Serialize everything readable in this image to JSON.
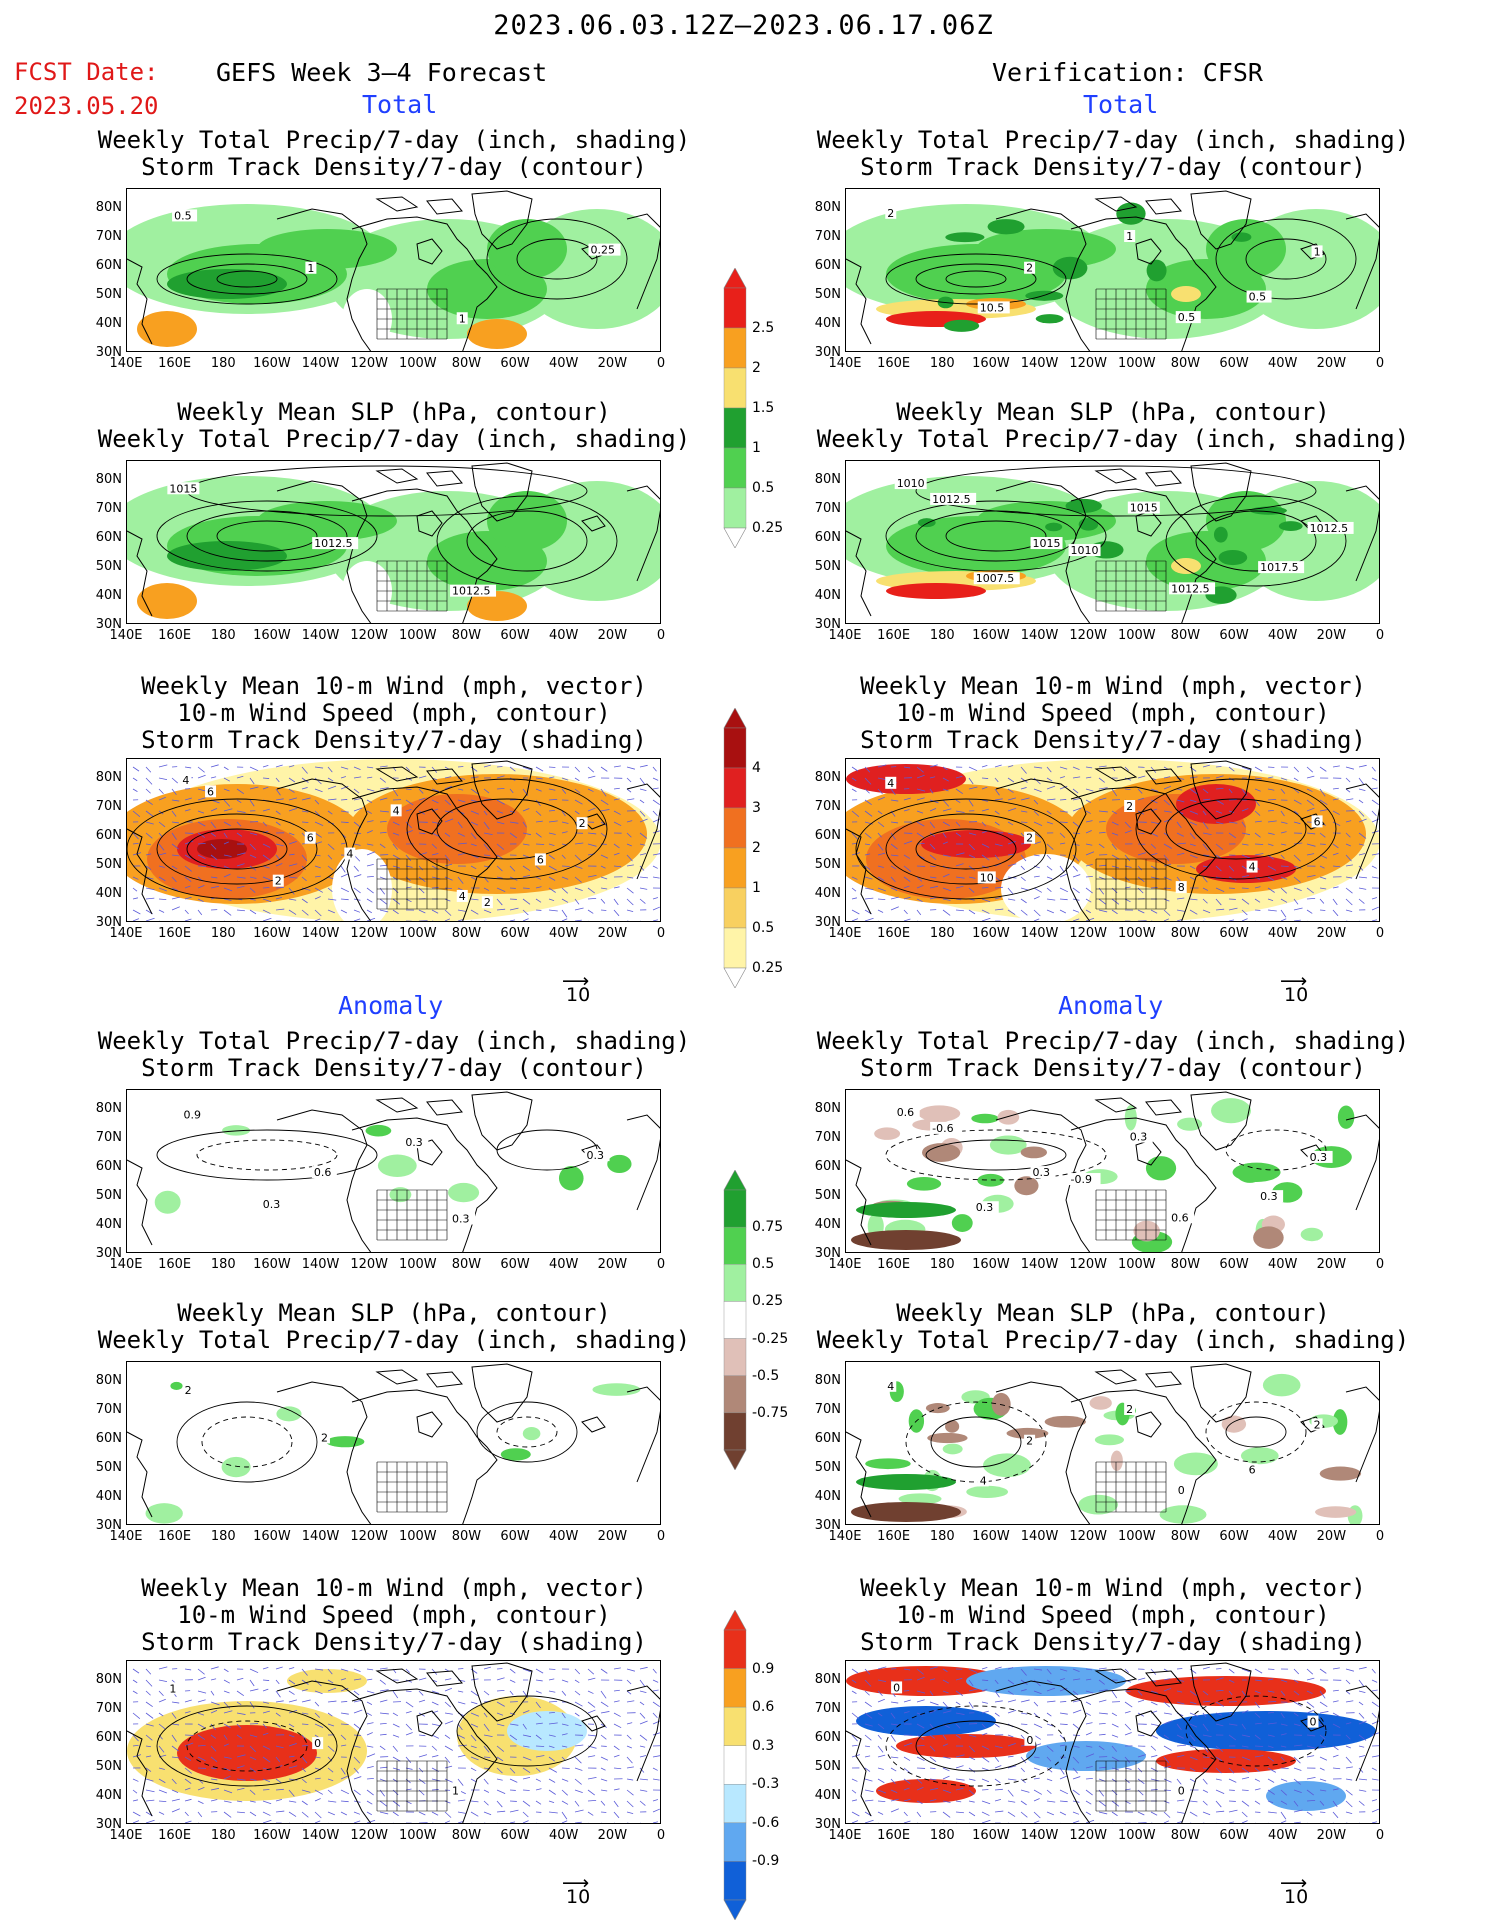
{
  "header": {
    "date_range": "2023.06.03.12Z–2023.06.17.06Z",
    "fcst_label": "FCST Date:",
    "fcst_date": "2023.05.20",
    "left_title": "GEFS Week 3–4 Forecast",
    "right_title": "Verification: CFSR"
  },
  "sections": {
    "total": "Total",
    "anomaly": "Anomaly"
  },
  "panel_titles": {
    "precip_storm": [
      "Weekly Total Precip/7-day (inch, shading)",
      "Storm Track Density/7-day (contour)"
    ],
    "slp_precip": [
      "Weekly Mean SLP (hPa, contour)",
      "Weekly Total Precip/7-day (inch, shading)"
    ],
    "wind_storm": [
      "Weekly Mean 10-m Wind (mph, vector)",
      "10-m Wind Speed (mph, contour)",
      "Storm Track Density/7-day (shading)"
    ]
  },
  "axes": {
    "lat_ticks": [
      "80N",
      "70N",
      "60N",
      "50N",
      "40N",
      "30N"
    ],
    "lon_ticks": [
      "140E",
      "160E",
      "180",
      "160W",
      "140W",
      "120W",
      "100W",
      "80W",
      "60W",
      "40W",
      "20W",
      "0"
    ]
  },
  "vector_reference": "10",
  "colorbars": {
    "precip_total": {
      "labels": [
        "2.5",
        "2",
        "1.5",
        "1",
        "0.5",
        "0.25"
      ],
      "colors": [
        "#e8201a",
        "#f8a020",
        "#f8e070",
        "#20a030",
        "#50d050",
        "#a0f0a0"
      ]
    },
    "storm_total": {
      "labels": [
        "4",
        "3",
        "2",
        "1",
        "0.5",
        "0.25"
      ],
      "colors": [
        "#a81010",
        "#e02020",
        "#f07020",
        "#f8a020",
        "#f8d060",
        "#fff4a8"
      ]
    },
    "precip_anom": {
      "labels": [
        "0.75",
        "0.5",
        "0.25",
        "-0.25",
        "-0.5",
        "-0.75"
      ],
      "colors": [
        "#20a030",
        "#50d050",
        "#a0f0a0",
        "#ffffff",
        "#e0c0b8",
        "#b08878",
        "#704030"
      ]
    },
    "storm_anom": {
      "labels": [
        "0.9",
        "0.6",
        "0.3",
        "-0.3",
        "-0.6",
        "-0.9"
      ],
      "colors": [
        "#e8301a",
        "#f8a020",
        "#f8e070",
        "#ffffff",
        "#b8e8ff",
        "#60a8f0",
        "#1060d8"
      ]
    }
  },
  "contour_labels": {
    "l_precip": [
      "0.5",
      "1",
      "1",
      "0.25"
    ],
    "r_precip": [
      "2",
      "2",
      "0.5",
      "1",
      "10.5",
      "1",
      "0.5"
    ],
    "l_slp": [
      "1015",
      "1012.5",
      "1012.5"
    ],
    "r_slp": [
      "1010",
      "1015",
      "1012.5",
      "1012.5",
      "1007.5",
      "1015",
      "1017.5",
      "1012.5",
      "1010"
    ],
    "l_wind": [
      "4",
      "6",
      "4",
      "2",
      "2",
      "4",
      "6",
      "6",
      "4",
      "2"
    ],
    "r_wind": [
      "4",
      "2",
      "8",
      "6",
      "10",
      "2",
      "4"
    ],
    "l_panom": [
      "0.9",
      "0.6",
      "0.3",
      "0.3",
      "0.3",
      "0.3"
    ],
    "r_panom": [
      "0.6",
      "0.3",
      "0.6",
      "0.3",
      "0.3",
      "0.3",
      "0.3",
      "-0.6",
      "-0.9"
    ],
    "l_slpanom": [
      "2",
      "2"
    ],
    "r_slpanom": [
      "4",
      "2",
      "0",
      "2",
      "4",
      "2",
      "6"
    ],
    "l_wanom": [
      "1",
      "0",
      "1"
    ],
    "r_wanom": [
      "0",
      "0",
      "0",
      "0"
    ]
  }
}
